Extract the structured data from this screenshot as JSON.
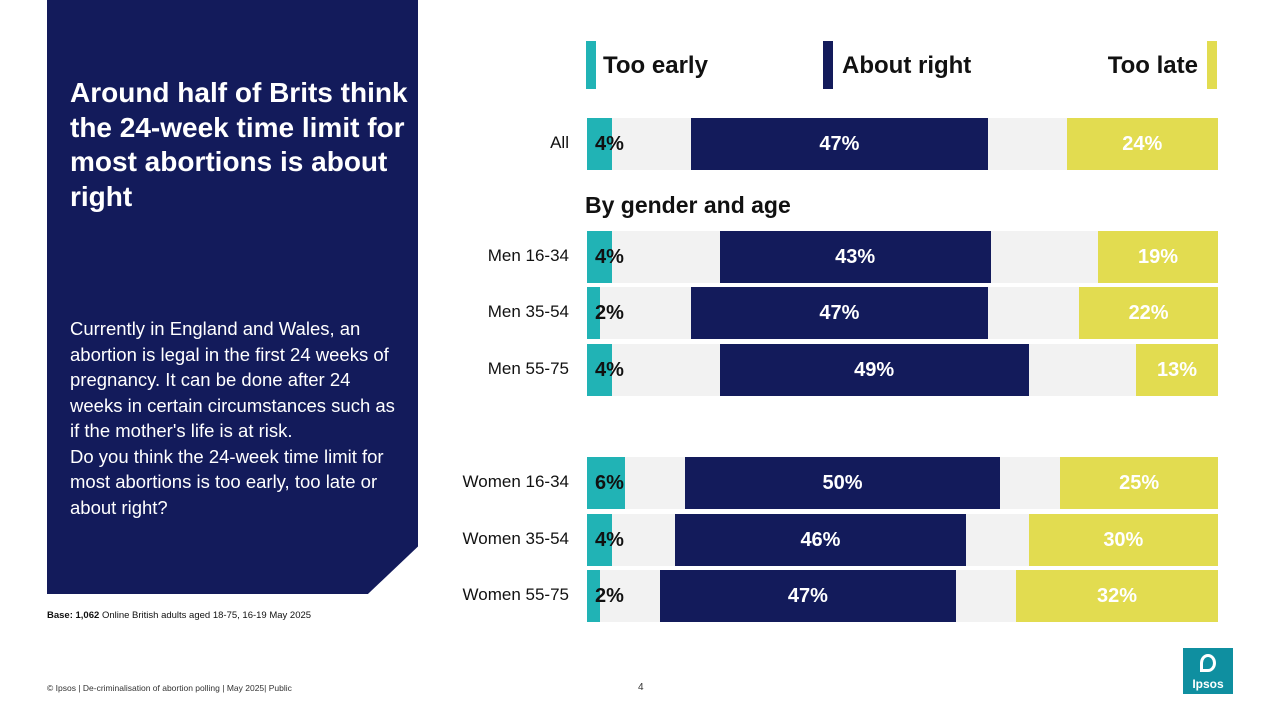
{
  "panel": {
    "title": "Around half of Brits think the 24-week time limit for most abortions is about right",
    "body": "Currently in England and Wales, an abortion is legal in the first 24 weeks of pregnancy. It can be done after 24 weeks in certain circumstances such as if the mother's life is at risk.\nDo you think the 24-week time limit for most abortions is too early, too late or about right?"
  },
  "base_note": {
    "label": "Base: 1,062",
    "text": "Online British adults aged 18-75, 16-19 May 2025"
  },
  "footer": {
    "text": "© Ipsos | De-criminalisation of abortion polling | May 2025| Public",
    "page_number": "4"
  },
  "logo": {
    "text": "Ipsos",
    "color": "#0f8fa0"
  },
  "colors": {
    "too_early": "#21b3b5",
    "about_right": "#131b5b",
    "too_late": "#e2dc50",
    "remainder": "#f2f2f2",
    "panel": "#131b5b"
  },
  "chart_data": {
    "type": "bar",
    "orientation": "horizontal",
    "stacked": true,
    "title": "",
    "section_heading": "By gender and age",
    "series": [
      {
        "name": "Too early",
        "values": [
          4,
          4,
          2,
          4,
          6,
          4,
          2
        ]
      },
      {
        "name": "About right",
        "values": [
          47,
          43,
          47,
          49,
          50,
          46,
          47
        ]
      },
      {
        "name": "Too late",
        "values": [
          24,
          19,
          22,
          13,
          25,
          30,
          32
        ]
      }
    ],
    "categories": [
      "All",
      "Men 16-34",
      "Men 35-54",
      "Men 55-75",
      "Women 16-34",
      "Women 35-54",
      "Women 55-75"
    ],
    "data_labels": [
      [
        "4%",
        "47%",
        "24%"
      ],
      [
        "4%",
        "43%",
        "19%"
      ],
      [
        "2%",
        "47%",
        "22%"
      ],
      [
        "4%",
        "49%",
        "13%"
      ],
      [
        "6%",
        "50%",
        "25%"
      ],
      [
        "4%",
        "46%",
        "30%"
      ],
      [
        "2%",
        "47%",
        "32%"
      ]
    ],
    "xlim": [
      0,
      100
    ],
    "legend_position": "top",
    "grid": false
  }
}
